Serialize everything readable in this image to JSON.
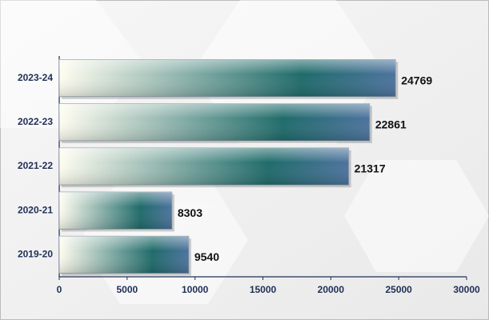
{
  "chart_data": {
    "type": "hbar",
    "categories": [
      "2023-24",
      "2022-23",
      "2021-22",
      "2020-21",
      "2019-20"
    ],
    "values": [
      24769,
      22861,
      21317,
      8303,
      9540
    ],
    "xlim": [
      0,
      30000
    ],
    "xticks": [
      0,
      5000,
      10000,
      15000,
      20000,
      25000,
      30000
    ],
    "colors": [
      "#fffdf0",
      "#1f6b6a",
      "#4d739e"
    ]
  }
}
